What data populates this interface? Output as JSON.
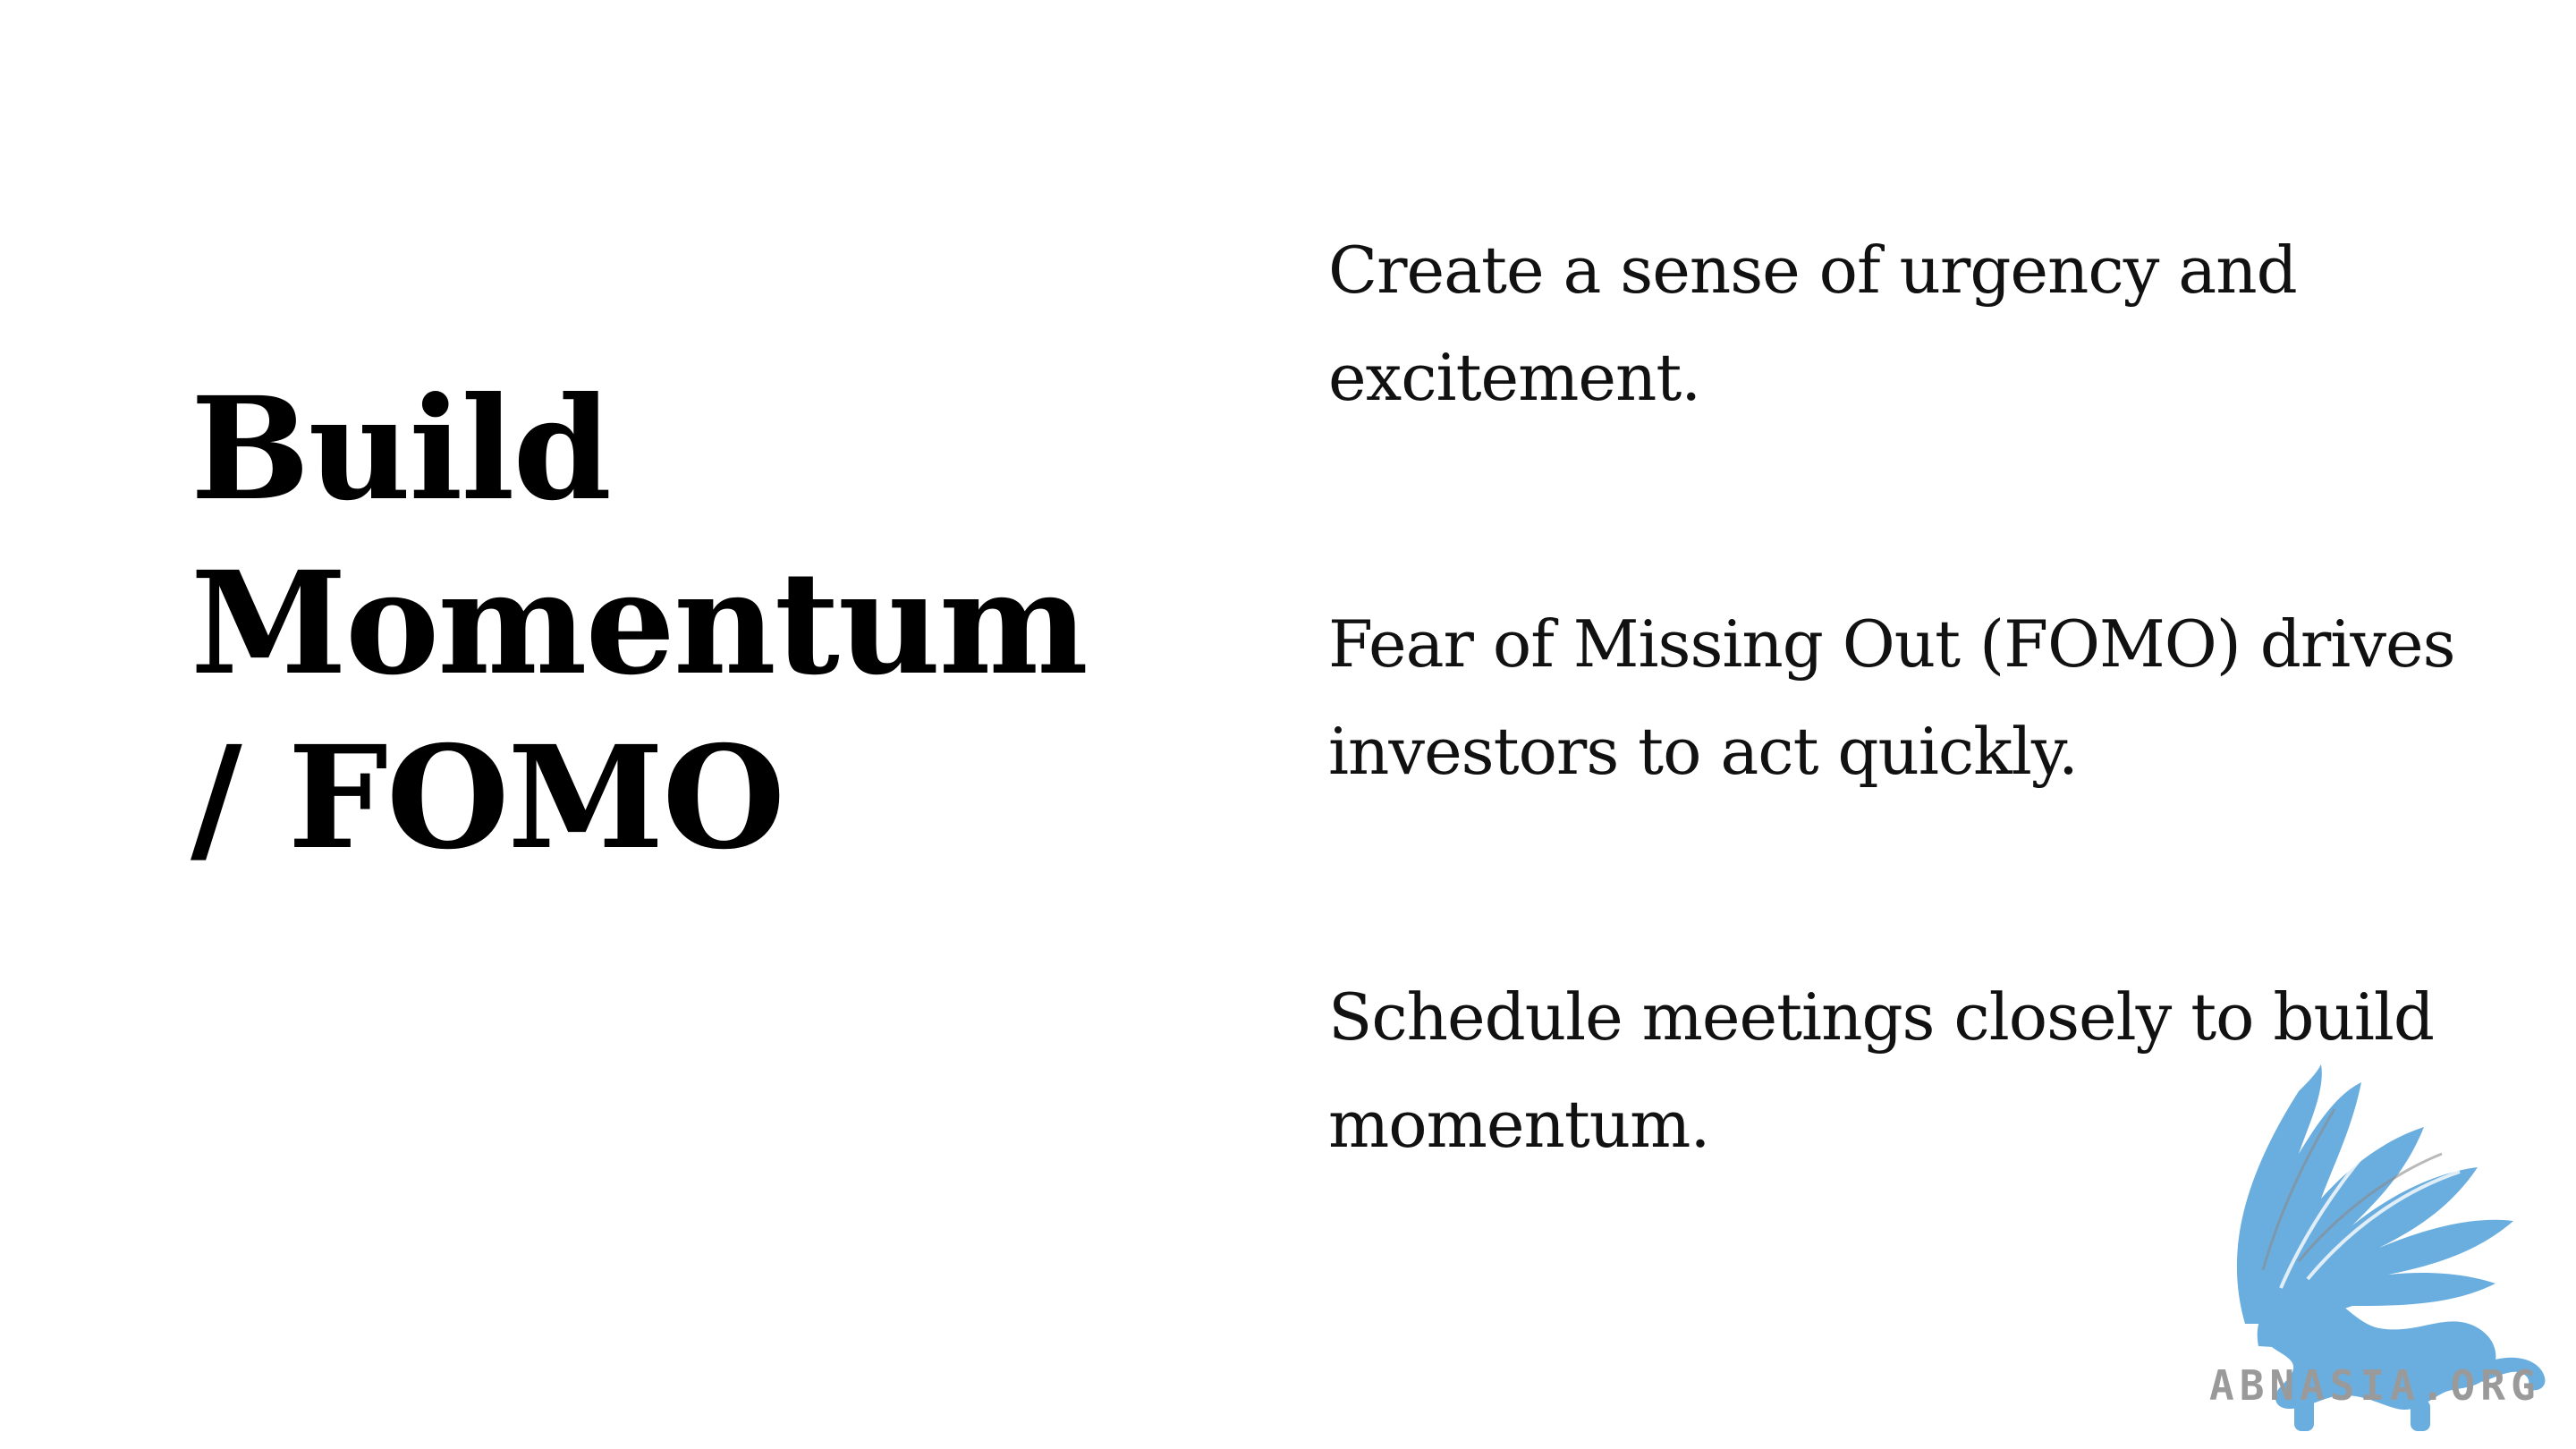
{
  "slide": {
    "title_lines": [
      "Build",
      "Momentum",
      "/ FOMO"
    ],
    "bullets": [
      {
        "lines": [
          "Create a sense of urgency and",
          "excitement."
        ]
      },
      {
        "lines": [
          "Fear of Missing Out (FOMO) drives",
          "investors to act quickly."
        ]
      },
      {
        "lines": [
          "Schedule meetings closely to build",
          "momentum."
        ]
      }
    ]
  },
  "logo": {
    "icon": "griffin-logo-icon",
    "text": "ABNASIA.ORG",
    "color": "#6aaee0",
    "text_color": "#9a9a9a"
  }
}
